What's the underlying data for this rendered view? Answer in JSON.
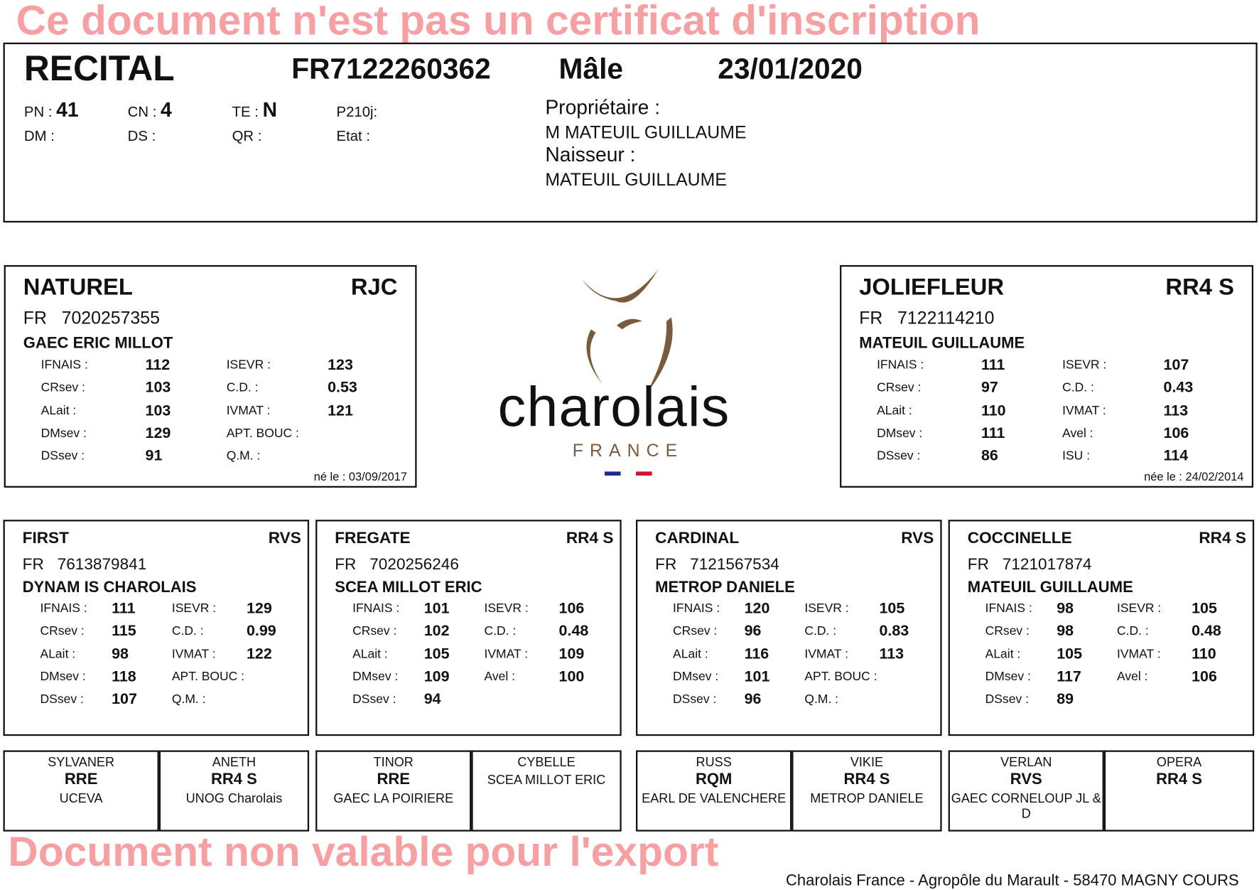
{
  "animal": {
    "name": "RECITAL",
    "id": "FR7122260362",
    "sex": "Mâle",
    "birth_date": "23/01/2020",
    "fields": [
      {
        "label": "PN :",
        "value": "41"
      },
      {
        "label": "CN :",
        "value": "4"
      },
      {
        "label": "TE :",
        "value": "N"
      },
      {
        "label": "P210j:",
        "value": ""
      },
      {
        "label": "DM :",
        "value": ""
      },
      {
        "label": "DS :",
        "value": ""
      },
      {
        "label": "QR :",
        "value": ""
      },
      {
        "label": "Etat :",
        "value": ""
      }
    ],
    "owner_label": "Propriétaire :",
    "owner": "M MATEUIL GUILLAUME",
    "breeder_label": "Naisseur :",
    "breeder": "MATEUIL GUILLAUME"
  },
  "parents": [
    {
      "name": "NATUREL",
      "qual": "RJC",
      "country": "FR",
      "number": "7020257355",
      "owner": "GAEC ERIC MILLOT",
      "stats_left": [
        {
          "label": "IFNAIS :",
          "value": "112"
        },
        {
          "label": "CRsev :",
          "value": "103"
        },
        {
          "label": "ALait :",
          "value": "103"
        },
        {
          "label": "DMsev :",
          "value": "129"
        },
        {
          "label": "DSsev :",
          "value": "91"
        }
      ],
      "stats_right": [
        {
          "label": "ISEVR :",
          "value": "123"
        },
        {
          "label": "C.D. :",
          "value": "0.53"
        },
        {
          "label": "IVMAT :",
          "value": "121"
        },
        {
          "label": "APT. BOUC :",
          "value": ""
        },
        {
          "label": "Q.M. :",
          "value": ""
        }
      ],
      "born": "né le : 03/09/2017"
    },
    {
      "name": "JOLIEFLEUR",
      "qual": "RR4 S",
      "country": "FR",
      "number": "7122114210",
      "owner": "MATEUIL GUILLAUME",
      "stats_left": [
        {
          "label": "IFNAIS :",
          "value": "111"
        },
        {
          "label": "CRsev :",
          "value": "97"
        },
        {
          "label": "ALait :",
          "value": "110"
        },
        {
          "label": "DMsev :",
          "value": "111"
        },
        {
          "label": "DSsev :",
          "value": "86"
        }
      ],
      "stats_right": [
        {
          "label": "ISEVR :",
          "value": "107"
        },
        {
          "label": "C.D. :",
          "value": "0.43"
        },
        {
          "label": "IVMAT :",
          "value": "113"
        },
        {
          "label": "Avel :",
          "value": "106"
        },
        {
          "label": "ISU :",
          "value": "114"
        }
      ],
      "born": "née le : 24/02/2014"
    }
  ],
  "grandparents": [
    {
      "name": "FIRST",
      "qual": "RVS",
      "country": "FR",
      "number": "7613879841",
      "owner": "DYNAM IS CHAROLAIS",
      "stats_left": [
        {
          "label": "IFNAIS :",
          "value": "111"
        },
        {
          "label": "CRsev :",
          "value": "115"
        },
        {
          "label": "ALait :",
          "value": "98"
        },
        {
          "label": "DMsev :",
          "value": "118"
        },
        {
          "label": "DSsev :",
          "value": "107"
        }
      ],
      "stats_right": [
        {
          "label": "ISEVR :",
          "value": "129"
        },
        {
          "label": "C.D. :",
          "value": "0.99"
        },
        {
          "label": "IVMAT :",
          "value": "122"
        },
        {
          "label": "APT. BOUC :",
          "value": ""
        },
        {
          "label": "Q.M. :",
          "value": ""
        }
      ]
    },
    {
      "name": "FREGATE",
      "qual": "RR4 S",
      "country": "FR",
      "number": "7020256246",
      "owner": "SCEA MILLOT ERIC",
      "stats_left": [
        {
          "label": "IFNAIS :",
          "value": "101"
        },
        {
          "label": "CRsev :",
          "value": "102"
        },
        {
          "label": "ALait :",
          "value": "105"
        },
        {
          "label": "DMsev :",
          "value": "109"
        },
        {
          "label": "DSsev :",
          "value": "94"
        }
      ],
      "stats_right": [
        {
          "label": "ISEVR :",
          "value": "106"
        },
        {
          "label": "C.D. :",
          "value": "0.48"
        },
        {
          "label": "IVMAT :",
          "value": "109"
        },
        {
          "label": "Avel :",
          "value": "100"
        }
      ]
    },
    {
      "name": "CARDINAL",
      "qual": "RVS",
      "country": "FR",
      "number": "7121567534",
      "owner": "METROP DANIELE",
      "stats_left": [
        {
          "label": "IFNAIS :",
          "value": "120"
        },
        {
          "label": "CRsev :",
          "value": "96"
        },
        {
          "label": "ALait :",
          "value": "116"
        },
        {
          "label": "DMsev :",
          "value": "101"
        },
        {
          "label": "DSsev :",
          "value": "96"
        }
      ],
      "stats_right": [
        {
          "label": "ISEVR :",
          "value": "105"
        },
        {
          "label": "C.D. :",
          "value": "0.83"
        },
        {
          "label": "IVMAT :",
          "value": "113"
        },
        {
          "label": "APT. BOUC :",
          "value": ""
        },
        {
          "label": "Q.M. :",
          "value": ""
        }
      ]
    },
    {
      "name": "COCCINELLE",
      "qual": "RR4 S",
      "country": "FR",
      "number": "7121017874",
      "owner": "MATEUIL GUILLAUME",
      "stats_left": [
        {
          "label": "IFNAIS :",
          "value": "98"
        },
        {
          "label": "CRsev :",
          "value": "98"
        },
        {
          "label": "ALait :",
          "value": "105"
        },
        {
          "label": "DMsev :",
          "value": "117"
        },
        {
          "label": "DSsev :",
          "value": "89"
        }
      ],
      "stats_right": [
        {
          "label": "ISEVR :",
          "value": "105"
        },
        {
          "label": "C.D. :",
          "value": "0.48"
        },
        {
          "label": "IVMAT :",
          "value": "110"
        },
        {
          "label": "Avel :",
          "value": "106"
        }
      ]
    }
  ],
  "great_grandparents": [
    {
      "name": "SYLVANER",
      "qual": "RRE",
      "owner": "UCEVA"
    },
    {
      "name": "ANETH",
      "qual": "RR4 S",
      "owner": "UNOG Charolais"
    },
    {
      "name": "TINOR",
      "qual": "RRE",
      "owner": "GAEC LA POIRIERE"
    },
    {
      "name": "CYBELLE",
      "qual": "",
      "owner": "SCEA MILLOT ERIC"
    },
    {
      "name": "RUSS",
      "qual": "RQM",
      "owner": "EARL DE VALENCHERE"
    },
    {
      "name": "VIKIE",
      "qual": "RR4 S",
      "owner": "METROP DANIELE"
    },
    {
      "name": "VERLAN",
      "qual": "RVS",
      "owner": "GAEC CORNELOUP JL & D"
    },
    {
      "name": "OPERA",
      "qual": "RR4 S",
      "owner": ""
    }
  ],
  "logo": {
    "word": "charolais",
    "sub": "FRANCE",
    "brown": "#7a5a3c",
    "blue": "#1e2a8c",
    "red": "#d0142c"
  },
  "watermark": {
    "line1": "Ce document n'est pas un certificat d'inscription",
    "line2": "Document non valable pour l'export",
    "color": "#f6a0a4"
  },
  "footer": "Charolais France - Agropôle du Marault - 58470 MAGNY COURS"
}
